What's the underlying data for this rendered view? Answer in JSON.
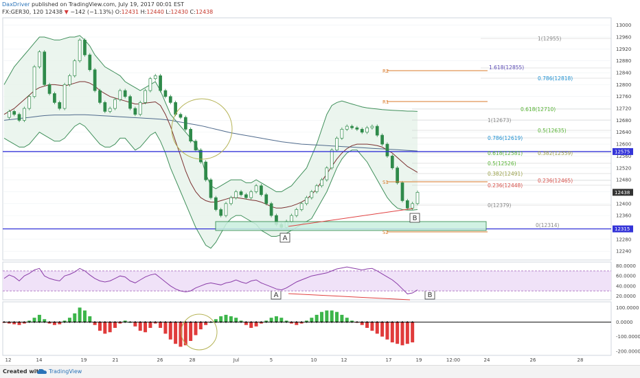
{
  "header": {
    "author": "DaxDriver",
    "published": "published on TradingView.com, July 19, 2017 00:01 EST",
    "symbol_line": "FX:GER30, 120",
    "last": "12438",
    "change": "−142 (−1.13%)",
    "ohlc": {
      "o": "12431",
      "h": "12440",
      "l": "12430",
      "c": "12438"
    }
  },
  "colors": {
    "candle_up": "#2f8a4a",
    "candle_down": "#2f8a4a",
    "bb_band": "#3f8f5a",
    "bb_fill": "#e6f3ea",
    "sma": "#7a2f2f",
    "ema": "#4f6a8c",
    "hline": "#3434d8",
    "rsi": "#8a3ca8",
    "rsi_fill": "#f0e2f8",
    "hist_pos": "#3cb54a",
    "hist_neg": "#e03b3b",
    "fib": "#1c8fd0",
    "fib_green": "#57b334",
    "pivot": "#d97a2a",
    "accent_red": "#e04040"
  },
  "price_axis": {
    "ticks": [
      "13000",
      "12960",
      "12920",
      "12880",
      "12840",
      "12800",
      "12760",
      "12720",
      "12680",
      "12640",
      "12600",
      "12560",
      "12520",
      "12480",
      "12440",
      "12400",
      "12360",
      "12320",
      "12280",
      "12240"
    ],
    "labels": {
      "l1": "12575",
      "l2": "12438",
      "l3": "12315"
    }
  },
  "rsi_axis": {
    "ticks": [
      "80.0000",
      "60.0000",
      "40.0000",
      "20.0000"
    ]
  },
  "osc_axis": {
    "ticks": [
      "100.0000",
      "0.0000",
      "-100.0000",
      "-200.0000"
    ]
  },
  "time_axis": {
    "ticks": [
      "12",
      "14",
      "19",
      "21",
      "26",
      "28",
      "Jul",
      "5",
      "10",
      "12",
      "17",
      "19",
      "12:00",
      "24",
      "26",
      "28"
    ]
  },
  "fib_texts": {
    "f1": "1(12955)",
    "f2": "1.618(12855)",
    "f3": "0.786(12818)",
    "f4": "0.618(12710)",
    "f5": "1(12673)",
    "f6": "0.5(12635)",
    "f7": "0.786(12619)",
    "f8": "0.618(12581)",
    "f9": "0.382(12559)",
    "f10": "0.5(12526)",
    "f11": "0.382(12491)",
    "f12": "0.236(12465)",
    "f13": "0.236(12448)",
    "f14": "0(12379)",
    "f15": "0(12314)"
  },
  "pivot_texts": {
    "r2": "R2",
    "r1": "R1",
    "s1": "S1",
    "s2": "S2"
  },
  "annotations": {
    "a1": "A",
    "b1": "B",
    "a2": "A",
    "b2": "B"
  },
  "footer": {
    "created": "Created with",
    "brand": "TradingView"
  },
  "chart_data": {
    "type": "line",
    "title": "FX:GER30, 120",
    "price": {
      "close": [
        12690,
        12710,
        12700,
        12680,
        12720,
        12760,
        12860,
        12910,
        12800,
        12770,
        12740,
        12720,
        12800,
        12830,
        12880,
        12950,
        12900,
        12850,
        12780,
        12740,
        12710,
        12720,
        12750,
        12780,
        12760,
        12720,
        12700,
        12740,
        12780,
        12820,
        12830,
        12780,
        12760,
        12740,
        12700,
        12690,
        12650,
        12610,
        12580,
        12540,
        12480,
        12420,
        12380,
        12360,
        12400,
        12420,
        12440,
        12430,
        12420,
        12440,
        12460,
        12430,
        12400,
        12360,
        12330,
        12320,
        12340,
        12360,
        12380,
        12400,
        12420,
        12440,
        12460,
        12480,
        12520,
        12580,
        12620,
        12650,
        12660,
        12655,
        12650,
        12640,
        12655,
        12660,
        12630,
        12600,
        12560,
        12520,
        12470,
        12410,
        12385,
        12400,
        12438
      ],
      "ylim": [
        12215,
        13020
      ],
      "bb_upper": [
        12800,
        12830,
        12860,
        12880,
        12900,
        12920,
        12940,
        12960,
        12960,
        12955,
        12950,
        12950,
        12955,
        12960,
        12960,
        12965,
        12950,
        12930,
        12900,
        12880,
        12860,
        12850,
        12840,
        12830,
        12810,
        12800,
        12790,
        12780,
        12790,
        12800,
        12810,
        12780,
        12740,
        12700,
        12680,
        12660,
        12640,
        12620,
        12600,
        12560,
        12500,
        12460,
        12450,
        12460,
        12470,
        12480,
        12480,
        12480,
        12470,
        12470,
        12480,
        12470,
        12460,
        12450,
        12440,
        12440,
        12450,
        12460,
        12480,
        12500,
        12520,
        12560,
        12600,
        12650,
        12700,
        12730,
        12740,
        12745,
        12740,
        12735,
        12730,
        12725,
        12722,
        12720,
        12718,
        12716,
        12715,
        12714,
        12713,
        12712,
        12711,
        12711,
        12710
      ],
      "bb_lower": [
        12620,
        12610,
        12600,
        12590,
        12590,
        12600,
        12620,
        12640,
        12630,
        12620,
        12610,
        12610,
        12620,
        12640,
        12660,
        12670,
        12660,
        12640,
        12620,
        12600,
        12590,
        12590,
        12600,
        12620,
        12620,
        12600,
        12580,
        12590,
        12610,
        12630,
        12640,
        12610,
        12570,
        12520,
        12480,
        12440,
        12400,
        12360,
        12320,
        12290,
        12260,
        12250,
        12270,
        12300,
        12330,
        12350,
        12360,
        12360,
        12350,
        12340,
        12330,
        12310,
        12300,
        12290,
        12290,
        12295,
        12300,
        12310,
        12320,
        12330,
        12340,
        12350,
        12380,
        12410,
        12440,
        12480,
        12520,
        12550,
        12570,
        12580,
        12580,
        12560,
        12540,
        12510,
        12480,
        12450,
        12420,
        12400,
        12385,
        12380,
        12378,
        12378,
        12380
      ],
      "sma": [
        12700,
        12710,
        12720,
        12735,
        12750,
        12765,
        12780,
        12790,
        12795,
        12800,
        12800,
        12798,
        12796,
        12800,
        12805,
        12810,
        12810,
        12805,
        12795,
        12780,
        12770,
        12760,
        12755,
        12750,
        12745,
        12740,
        12735,
        12735,
        12738,
        12740,
        12742,
        12730,
        12700,
        12660,
        12610,
        12560,
        12510,
        12470,
        12440,
        12420,
        12410,
        12405,
        12405,
        12410,
        12415,
        12420,
        12420,
        12418,
        12415,
        12412,
        12410,
        12405,
        12398,
        12390,
        12385,
        12385,
        12388,
        12392,
        12398,
        12405,
        12415,
        12430,
        12450,
        12475,
        12500,
        12525,
        12550,
        12570,
        12585,
        12595,
        12600,
        12600,
        12600,
        12598,
        12595,
        12590,
        12580,
        12570,
        12555,
        12540,
        12525,
        12515,
        12505
      ],
      "ema200": [
        12680,
        12682,
        12684,
        12686,
        12688,
        12690,
        12692,
        12694,
        12696,
        12697,
        12698,
        12698,
        12698,
        12698,
        12699,
        12699,
        12699,
        12698,
        12697,
        12696,
        12695,
        12694,
        12693,
        12692,
        12691,
        12690,
        12689,
        12688,
        12687,
        12686,
        12685,
        12684,
        12682,
        12680,
        12677,
        12674,
        12671,
        12668,
        12665,
        12662,
        12658,
        12654,
        12650,
        12646,
        12642,
        12638,
        12635,
        12632,
        12629,
        12626,
        12623,
        12620,
        12617,
        12614,
        12611,
        12608,
        12606,
        12604,
        12602,
        12600,
        12599,
        12598,
        12597,
        12596,
        12595,
        12594,
        12593,
        12592,
        12591,
        12590,
        12589,
        12588,
        12587,
        12586,
        12585,
        12584,
        12583,
        12582,
        12581,
        12580,
        12579,
        12578,
        12577
      ],
      "hlines": [
        12575,
        12315
      ],
      "last": 12438
    },
    "rsi": {
      "values": [
        55,
        62,
        58,
        50,
        60,
        65,
        72,
        75,
        60,
        55,
        52,
        50,
        60,
        63,
        68,
        75,
        70,
        62,
        55,
        50,
        48,
        50,
        55,
        60,
        58,
        50,
        46,
        52,
        58,
        62,
        64,
        56,
        48,
        40,
        34,
        30,
        28,
        30,
        36,
        40,
        44,
        46,
        44,
        42,
        46,
        48,
        52,
        48,
        45,
        50,
        52,
        46,
        42,
        38,
        34,
        32,
        36,
        42,
        48,
        52,
        56,
        60,
        62,
        64,
        66,
        70,
        74,
        76,
        78,
        76,
        74,
        72,
        74,
        75,
        70,
        64,
        58,
        52,
        44,
        34,
        24,
        26,
        32
      ],
      "ylim": [
        15,
        85
      ],
      "bands": [
        70,
        30
      ]
    },
    "oscillator": {
      "values": [
        -5,
        -10,
        -15,
        -20,
        -10,
        10,
        30,
        50,
        20,
        -10,
        -20,
        -15,
        10,
        30,
        60,
        100,
        80,
        40,
        -20,
        -60,
        -80,
        -70,
        -40,
        -10,
        10,
        0,
        -30,
        -60,
        -70,
        -40,
        -10,
        -40,
        -80,
        -120,
        -150,
        -170,
        -160,
        -130,
        -90,
        -50,
        -20,
        0,
        20,
        40,
        50,
        40,
        30,
        10,
        -20,
        -40,
        -30,
        -10,
        10,
        30,
        40,
        30,
        10,
        -10,
        -20,
        -10,
        10,
        30,
        50,
        70,
        80,
        80,
        70,
        50,
        30,
        10,
        -5,
        -20,
        -40,
        -60,
        -80,
        -100,
        -120,
        -140,
        -150,
        -160,
        -150,
        -140
      ],
      "ylim": [
        -220,
        130
      ]
    },
    "xlabel": "",
    "ylabel": ""
  }
}
